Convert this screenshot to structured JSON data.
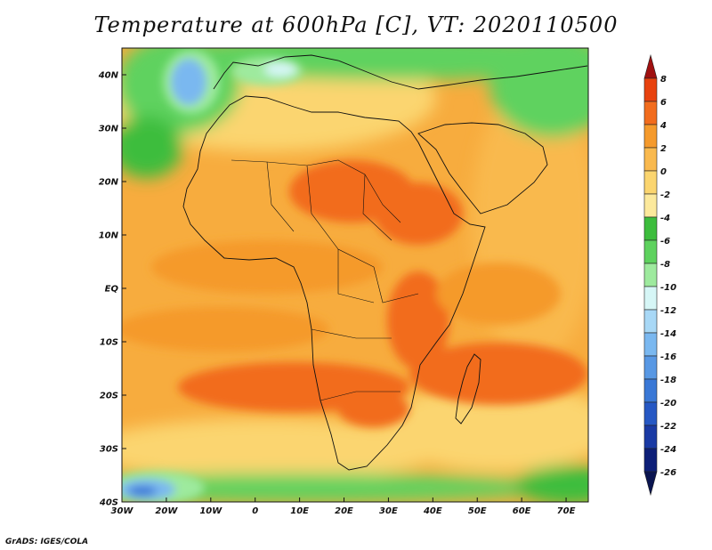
{
  "title": "Temperature at 600hPa [C], VT: 2020110500",
  "credit": "GrADS: IGES/COLA",
  "lon_labels": [
    "30W",
    "20W",
    "10W",
    "0",
    "10E",
    "20E",
    "30E",
    "40E",
    "50E",
    "60E",
    "70E"
  ],
  "lat_labels": [
    "40N",
    "30N",
    "20N",
    "10N",
    "EQ",
    "10S",
    "20S",
    "30S",
    "40S"
  ],
  "colorbar": {
    "labels": [
      "8",
      "6",
      "4",
      "2",
      "0",
      "-2",
      "-4",
      "-6",
      "-8",
      "-10",
      "-12",
      "-14",
      "-16",
      "-18",
      "-20",
      "-22",
      "-24",
      "-26"
    ],
    "colors": [
      "#a01010",
      "#e8420e",
      "#f26c1d",
      "#f59a2c",
      "#f9b94e",
      "#fbd56f",
      "#fce99c",
      "#3dbd3d",
      "#5ed25e",
      "#9eea9e",
      "#d6f6f6",
      "#a8d8f6",
      "#7ab8f0",
      "#5898e4",
      "#3a78d6",
      "#2658c4",
      "#1a3aa4",
      "#0d1f78",
      "#0a1450"
    ]
  },
  "chart_data": {
    "type": "heatmap",
    "title": "Temperature at 600hPa [C], VT: 2020110500",
    "variable": "Temperature at 600hPa",
    "units": "C",
    "valid_time": "2020110500",
    "lon_range": [
      -30,
      75
    ],
    "lat_range": [
      -40,
      45
    ],
    "contour_levels": [
      -26,
      -24,
      -22,
      -20,
      -18,
      -16,
      -14,
      -12,
      -10,
      -8,
      -6,
      -4,
      -2,
      0,
      2,
      4,
      6,
      8
    ]
  }
}
